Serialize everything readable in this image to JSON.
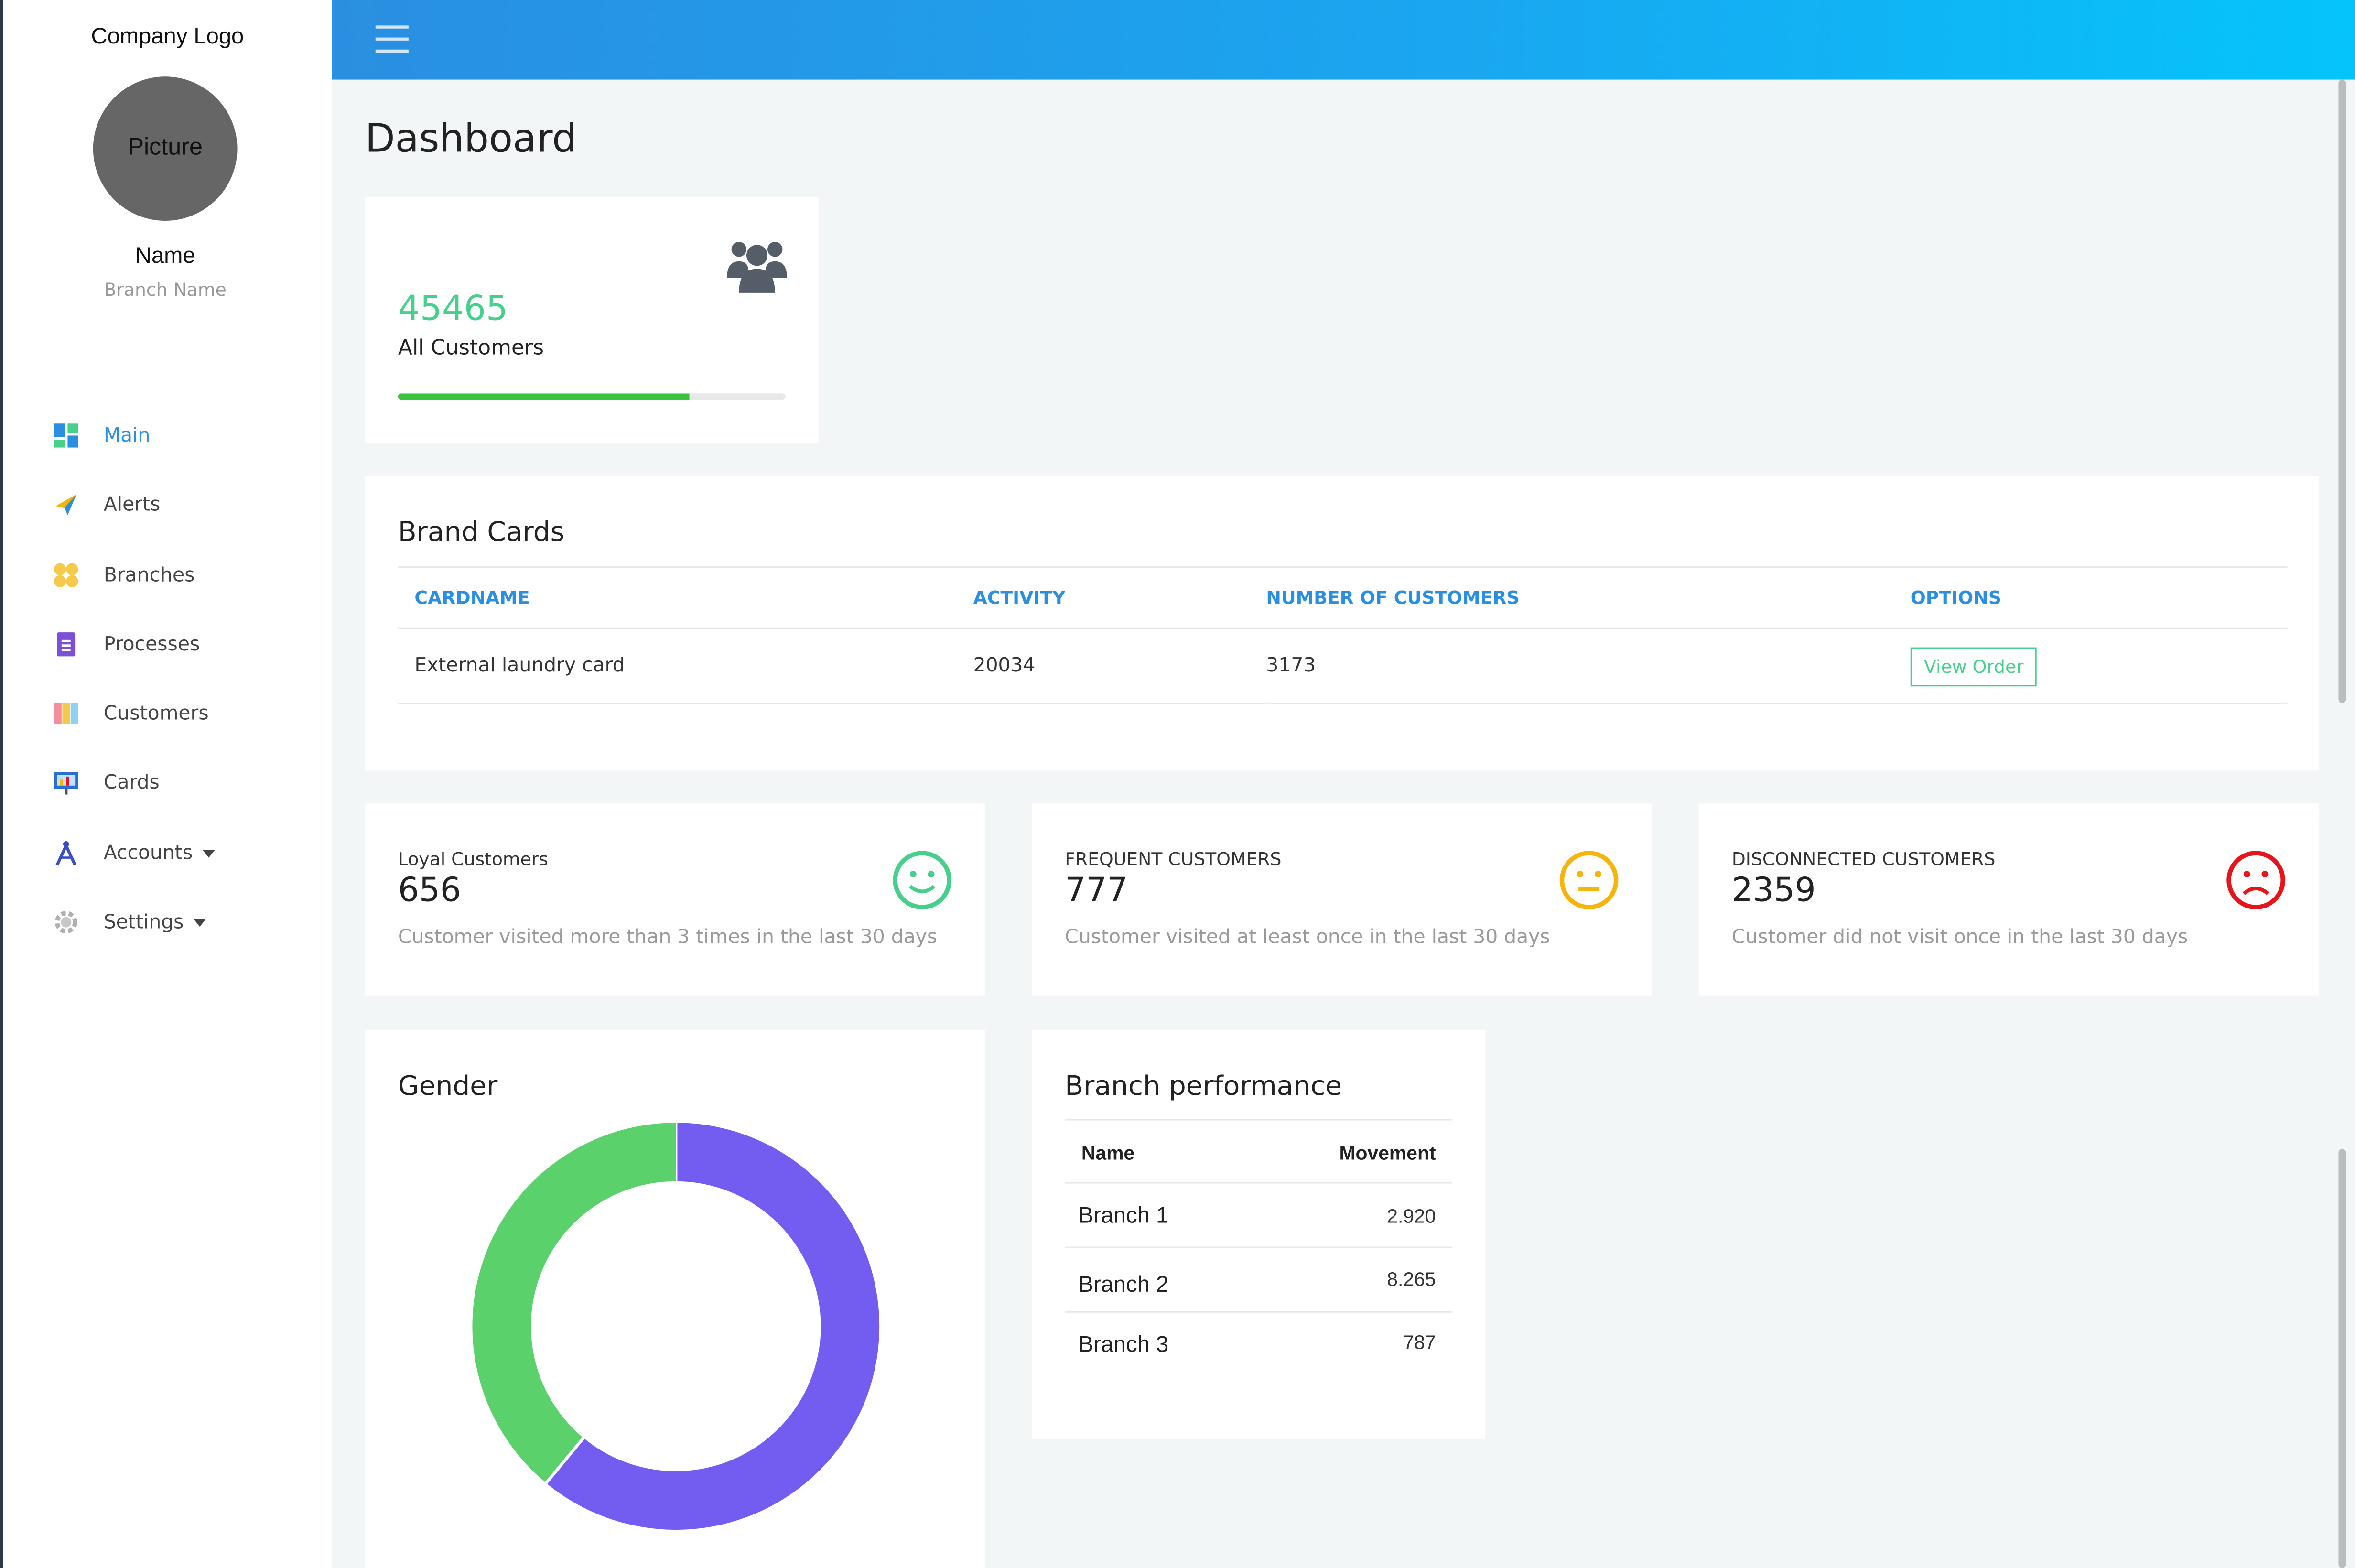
{
  "sidebar": {
    "logo": "Company Logo",
    "picture": "Picture",
    "name": "Name",
    "branch": "Branch Name",
    "items": [
      {
        "label": "Main",
        "icon": "dashboard-icon",
        "active": true
      },
      {
        "label": "Alerts",
        "icon": "paper-plane-icon"
      },
      {
        "label": "Branches",
        "icon": "grid-dots-icon"
      },
      {
        "label": "Processes",
        "icon": "document-icon"
      },
      {
        "label": "Customers",
        "icon": "columns-icon"
      },
      {
        "label": "Cards",
        "icon": "presentation-icon"
      },
      {
        "label": "Accounts",
        "icon": "compass-icon",
        "dropdown": true
      },
      {
        "label": "Settings",
        "icon": "gear-icon",
        "dropdown": true
      }
    ]
  },
  "topbar": {
    "menu_icon": "hamburger-icon",
    "gradient": [
      "#2a8fe0",
      "#05c4fb"
    ]
  },
  "page": {
    "title": "Dashboard"
  },
  "customers_card": {
    "value": "45465",
    "label": "All Customers",
    "icon": "users-group-icon",
    "progress": 0.75
  },
  "brand_cards": {
    "title": "Brand Cards",
    "columns": [
      "CARDNAME",
      "ACTIVITY",
      "NUMBER OF CUSTOMERS",
      "OPTIONS"
    ],
    "rows": [
      {
        "cardname": "External laundry card",
        "activity": "20034",
        "customers": "3173",
        "option": "View Order"
      }
    ]
  },
  "stats": [
    {
      "label": "Loyal Customers",
      "value": "656",
      "desc": "Customer visited more than 3 times in the last 30 days",
      "icon": "smile-face-icon",
      "color": "#46d08b"
    },
    {
      "label": "FREQUENT CUSTOMERS",
      "value": "777",
      "desc": "Customer visited at least once in the last 30 days",
      "icon": "neutral-face-icon",
      "color": "#f5b50c"
    },
    {
      "label": "DISCONNECTED CUSTOMERS",
      "value": "2359",
      "desc": "Customer did not visit once in the last 30 days",
      "icon": "sad-face-icon",
      "color": "#e8141c"
    }
  ],
  "gender": {
    "title": "Gender",
    "chart_data": {
      "type": "pie",
      "values": [
        61,
        39
      ],
      "colors": [
        "#735cf0",
        "#5ad16a"
      ]
    }
  },
  "branch_performance": {
    "title": "Branch performance",
    "columns": [
      "Name",
      "Movement"
    ],
    "rows": [
      {
        "name": "Branch 1",
        "movement": "2.920"
      },
      {
        "name": "Branch 2",
        "movement": "8.265"
      },
      {
        "name": "Branch 3",
        "movement": "787"
      }
    ]
  }
}
